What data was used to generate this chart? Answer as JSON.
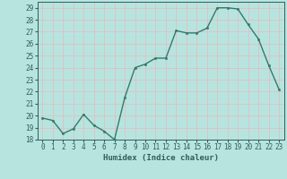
{
  "x": [
    0,
    1,
    2,
    3,
    4,
    5,
    6,
    7,
    8,
    9,
    10,
    11,
    12,
    13,
    14,
    15,
    16,
    17,
    18,
    19,
    20,
    21,
    22,
    23
  ],
  "y": [
    19.8,
    19.6,
    18.5,
    18.9,
    20.1,
    19.2,
    18.7,
    18.0,
    21.5,
    24.0,
    24.3,
    24.8,
    24.8,
    27.1,
    26.9,
    26.9,
    27.3,
    29.0,
    29.0,
    28.9,
    27.6,
    26.4,
    24.2,
    22.2
  ],
  "line_color": "#2e7d6b",
  "marker": "o",
  "markersize": 1.8,
  "linewidth": 1.0,
  "bg_color": "#b8e4e0",
  "grid_color": "#e8b8b8",
  "xlabel": "Humidex (Indice chaleur)",
  "ylim": [
    18,
    29.5
  ],
  "xlim": [
    -0.5,
    23.5
  ],
  "yticks": [
    18,
    19,
    20,
    21,
    22,
    23,
    24,
    25,
    26,
    27,
    28,
    29
  ],
  "xticks": [
    0,
    1,
    2,
    3,
    4,
    5,
    6,
    7,
    8,
    9,
    10,
    11,
    12,
    13,
    14,
    15,
    16,
    17,
    18,
    19,
    20,
    21,
    22,
    23
  ],
  "tick_fontsize": 5.5,
  "xlabel_fontsize": 6.5,
  "tick_color": "#2e5f5a",
  "axis_color": "#2e5f5a"
}
